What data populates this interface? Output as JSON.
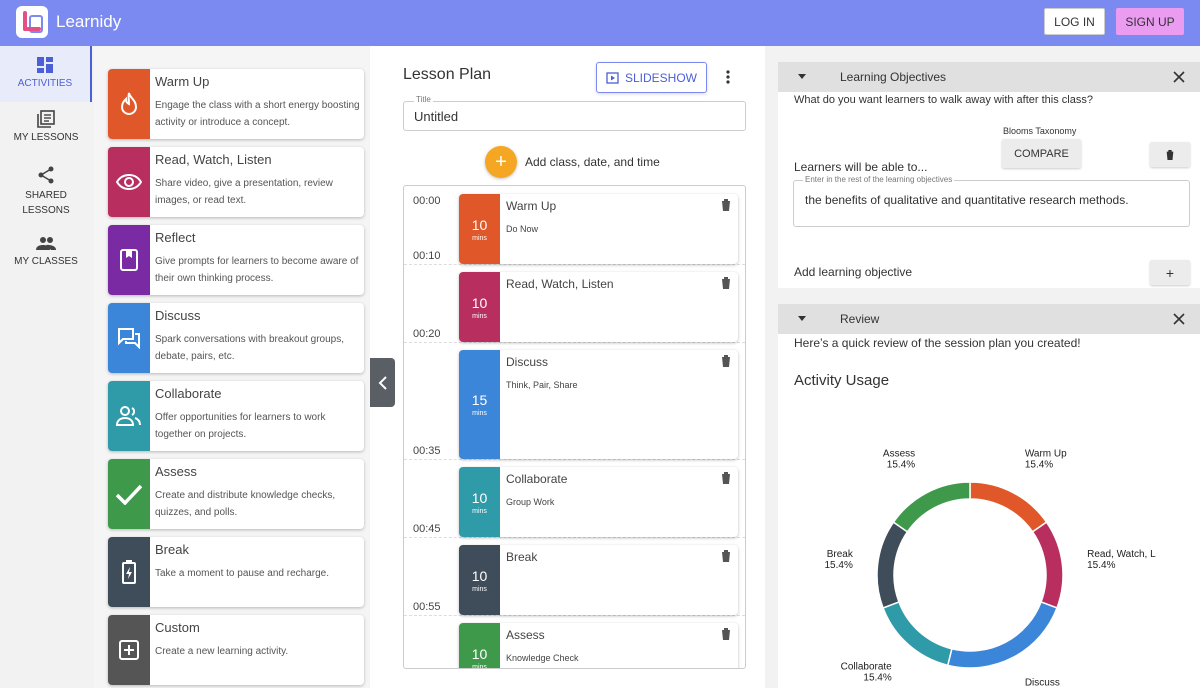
{
  "header": {
    "brand": "Learnidy",
    "login_label": "LOG IN",
    "signup_label": "SIGN UP"
  },
  "nav": {
    "items": [
      {
        "label": "ACTIVITIES",
        "icon": "dashboard-icon"
      },
      {
        "label": "MY LESSONS",
        "icon": "library-icon"
      },
      {
        "label": "SHARED LESSONS",
        "icon": "share-icon"
      },
      {
        "label": "MY CLASSES",
        "icon": "people-icon"
      }
    ]
  },
  "activities": [
    {
      "title": "Warm Up",
      "desc": "Engage the class with a short energy boosting activity or introduce a concept.",
      "color": "#e0572a",
      "icon": "fire-icon"
    },
    {
      "title": "Read, Watch, Listen",
      "desc": "Share video, give a presentation, review images, or read text.",
      "color": "#b82e5e",
      "icon": "eye-icon"
    },
    {
      "title": "Reflect",
      "desc": "Give prompts for learners to become aware of their own thinking process.",
      "color": "#7a2ba3",
      "icon": "book-icon"
    },
    {
      "title": "Discuss",
      "desc": "Spark conversations with breakout groups, debate, pairs, etc.",
      "color": "#3b86d8",
      "icon": "chat-icon"
    },
    {
      "title": "Collaborate",
      "desc": "Offer opportunities for learners to work together on projects.",
      "color": "#2f9aa8",
      "icon": "group-icon"
    },
    {
      "title": "Assess",
      "desc": "Create and distribute knowledge checks, quizzes, and polls.",
      "color": "#3e9a4a",
      "icon": "check-icon"
    },
    {
      "title": "Break",
      "desc": "Take a moment to pause and recharge.",
      "color": "#3f4d5a",
      "icon": "battery-icon"
    },
    {
      "title": "Custom",
      "desc": "Create a new learning activity.",
      "color": "#555555",
      "icon": "add-box-icon"
    }
  ],
  "lesson": {
    "heading": "Lesson Plan",
    "slideshow_label": "SLIDESHOW",
    "title_label": "Title",
    "title_value": "Untitled",
    "add_class_label": "Add class, date, and time",
    "times": [
      "00:00",
      "00:10",
      "00:20",
      "00:35",
      "00:45",
      "00:55"
    ],
    "blocks": [
      {
        "title": "Warm Up",
        "subtitle": "Do Now",
        "minutes": "10",
        "unit": "mins",
        "color": "#e0572a"
      },
      {
        "title": "Read, Watch, Listen",
        "subtitle": "",
        "minutes": "10",
        "unit": "mins",
        "color": "#b82e5e"
      },
      {
        "title": "Discuss",
        "subtitle": "Think, Pair, Share",
        "minutes": "15",
        "unit": "mins",
        "color": "#3b86d8"
      },
      {
        "title": "Collaborate",
        "subtitle": "Group Work",
        "minutes": "10",
        "unit": "mins",
        "color": "#2f9aa8"
      },
      {
        "title": "Break",
        "subtitle": "",
        "minutes": "10",
        "unit": "mins",
        "color": "#3f4d5a"
      },
      {
        "title": "Assess",
        "subtitle": "Knowledge Check",
        "minutes": "10",
        "unit": "mins",
        "color": "#3e9a4a"
      }
    ]
  },
  "objectives": {
    "title": "Learning Objectives",
    "question": "What do you want learners to walk away with after this class?",
    "blooms_label": "Blooms Taxonomy",
    "lead": "Learners will be able to...",
    "compare_label": "COMPARE",
    "field_label": "Enter in the rest of the learning objectives",
    "field_value": "the benefits of qualitative and quantitative research methods.",
    "add_label": "Add learning objective",
    "add_button": "+"
  },
  "review": {
    "title": "Review",
    "intro": "Here’s a quick review of the session plan you created!",
    "usage_title": "Activity Usage"
  },
  "chart_data": {
    "type": "pie",
    "style": "donut",
    "categories": [
      "Warm Up",
      "Read, Watch, L",
      "Discuss",
      "Collaborate",
      "Break",
      "Assess"
    ],
    "values": [
      15.4,
      15.4,
      23.1,
      15.4,
      15.4,
      15.4
    ],
    "value_labels": [
      "15.4%",
      "15.4%",
      "23.1%",
      "15.4%",
      "15.4%",
      "15.4%"
    ],
    "colors": [
      "#e0572a",
      "#b82e5e",
      "#3b86d8",
      "#2f9aa8",
      "#3f4d5a",
      "#3e9a4a"
    ]
  }
}
